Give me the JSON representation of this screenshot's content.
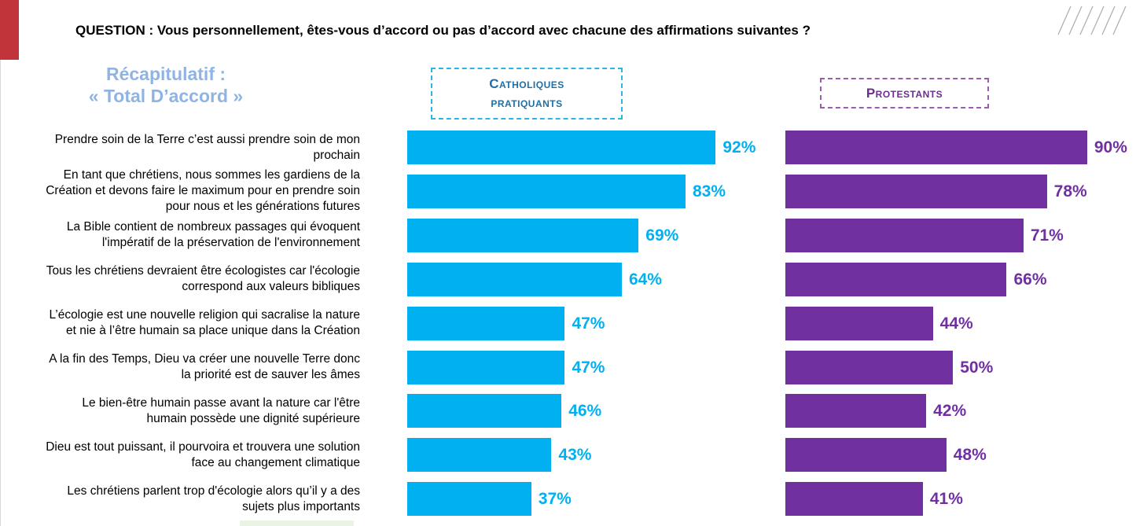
{
  "question": "QUESTION : Vous personnellement, êtes-vous d’accord ou pas d’accord avec chacune des affirmations suivantes ?",
  "recap": {
    "line1": "Récapitulatif :",
    "line2": "« Total D’accord »"
  },
  "headers": {
    "catholiques_line1": "Catholiques",
    "catholiques_line2": "pratiquants",
    "protestants": "Protestants"
  },
  "colors": {
    "catholiques": "#00b0f0",
    "protestants": "#7030a0",
    "accent_red": "#c0343a"
  },
  "chart_data": {
    "type": "bar",
    "orientation": "horizontal",
    "title": "Récapitulatif : « Total D’accord »",
    "categories": [
      [
        "Prendre soin de la Terre c’est aussi prendre soin de mon",
        "prochain"
      ],
      [
        "En tant que chrétiens, nous sommes les gardiens de la",
        "Création et devons faire le maximum pour en prendre soin",
        "pour nous et les générations futures"
      ],
      [
        "La Bible contient de nombreux passages qui évoquent",
        "l'impératif de la préservation de l'environnement"
      ],
      [
        "Tous les chrétiens devraient être écologistes car l'écologie",
        "correspond aux valeurs bibliques"
      ],
      [
        "L’écologie est une nouvelle religion qui sacralise la nature",
        "et nie à l’être humain sa place unique dans la Création"
      ],
      [
        "A la fin des Temps, Dieu va créer une nouvelle Terre donc",
        "la priorité est de sauver les âmes"
      ],
      [
        "Le bien-être humain passe avant la nature car l'être",
        "humain possède une dignité supérieure"
      ],
      [
        "Dieu est tout puissant, il pourvoira et trouvera une solution",
        "face au changement climatique"
      ],
      [
        "Les chrétiens parlent trop d'écologie alors qu’il y a des",
        "sujets plus importants"
      ]
    ],
    "series": [
      {
        "name": "Catholiques pratiquants",
        "values": [
          92,
          83,
          69,
          64,
          47,
          47,
          46,
          43,
          37
        ],
        "labels": [
          "92%",
          "83%",
          "69%",
          "64%",
          "47%",
          "47%",
          "46%",
          "43%",
          "37%"
        ]
      },
      {
        "name": "Protestants",
        "values": [
          90,
          78,
          71,
          66,
          44,
          50,
          42,
          48,
          41
        ],
        "labels": [
          "90%",
          "78%",
          "71%",
          "66%",
          "44%",
          "50%",
          "42%",
          "48%",
          "41%"
        ]
      }
    ],
    "xlim": [
      0,
      100
    ],
    "unit": "%"
  }
}
